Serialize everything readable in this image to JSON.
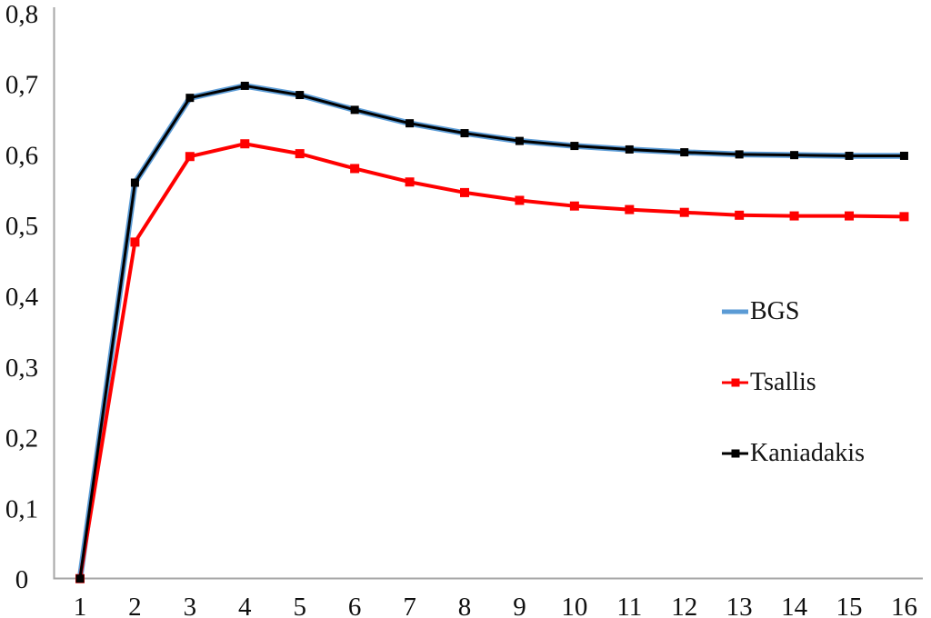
{
  "page": {
    "background": "#ffffff"
  },
  "chart_data": {
    "type": "line",
    "title": "",
    "xlabel": "",
    "ylabel": "",
    "x": [
      1,
      2,
      3,
      4,
      5,
      6,
      7,
      8,
      9,
      10,
      11,
      12,
      13,
      14,
      15,
      16
    ],
    "x_tick_labels": [
      "1",
      "2",
      "3",
      "4",
      "5",
      "6",
      "7",
      "8",
      "9",
      "10",
      "11",
      "12",
      "13",
      "14",
      "15",
      "16"
    ],
    "y_tick_labels": [
      "0",
      "0,1",
      "0,2",
      "0,3",
      "0,4",
      "0,5",
      "0,6",
      "0,7",
      "0,8"
    ],
    "ylim": [
      0,
      0.8
    ],
    "ytick_step": 0.1,
    "decimal_separator": ",",
    "grid": false,
    "legend_position": "center-right",
    "axis_color": "#a6a6a6",
    "text_color": "#0f0f0f",
    "series": [
      {
        "name": "BGS",
        "color": "#5b9bd5",
        "marker": "none",
        "values": [
          0,
          0.56,
          0.68,
          0.697,
          0.684,
          0.663,
          0.644,
          0.63,
          0.619,
          0.612,
          0.607,
          0.603,
          0.6,
          0.599,
          0.598,
          0.598
        ]
      },
      {
        "name": "Tsallis",
        "color": "#ff0000",
        "marker": "square",
        "values": [
          0,
          0.476,
          0.597,
          0.615,
          0.601,
          0.58,
          0.561,
          0.546,
          0.535,
          0.527,
          0.522,
          0.518,
          0.514,
          0.513,
          0.513,
          0.512
        ]
      },
      {
        "name": "Kaniadakis",
        "color": "#000000",
        "marker": "square",
        "values": [
          0,
          0.56,
          0.68,
          0.697,
          0.684,
          0.663,
          0.644,
          0.63,
          0.619,
          0.612,
          0.607,
          0.603,
          0.6,
          0.599,
          0.598,
          0.598
        ]
      }
    ]
  }
}
